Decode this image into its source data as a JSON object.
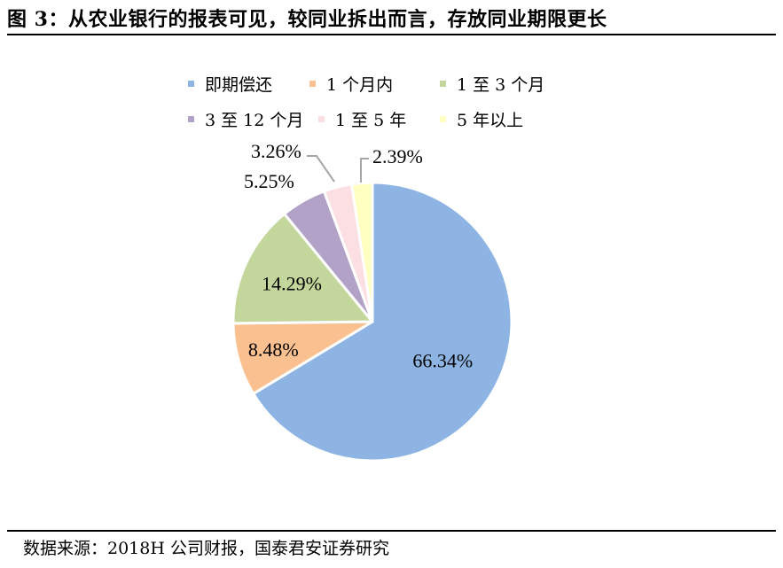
{
  "title": "图 3：从农业银行的报表可见，较同业拆出而言，存放同业期限更长",
  "source": "数据来源：2018H 公司财报，国泰君安证券研究",
  "chart_data": {
    "type": "pie",
    "series": [
      {
        "name": "即期偿还",
        "value": 66.34,
        "label": "66.34%",
        "color": "#8EB4E3"
      },
      {
        "name": "1 个月内",
        "value": 8.48,
        "label": "8.48%",
        "color": "#FAC090"
      },
      {
        "name": "1 至 3 个月",
        "value": 14.29,
        "label": "14.29%",
        "color": "#C3D69B"
      },
      {
        "name": "3 至 12 个月",
        "value": 5.25,
        "label": "5.25%",
        "color": "#B3A2C7"
      },
      {
        "name": "1 至 5 年",
        "value": 3.26,
        "label": "3.26%",
        "color": "#FCDFE3"
      },
      {
        "name": "5 年以上",
        "value": 2.39,
        "label": "2.39%",
        "color": "#FFFFC2"
      }
    ],
    "legend_position": "top"
  }
}
